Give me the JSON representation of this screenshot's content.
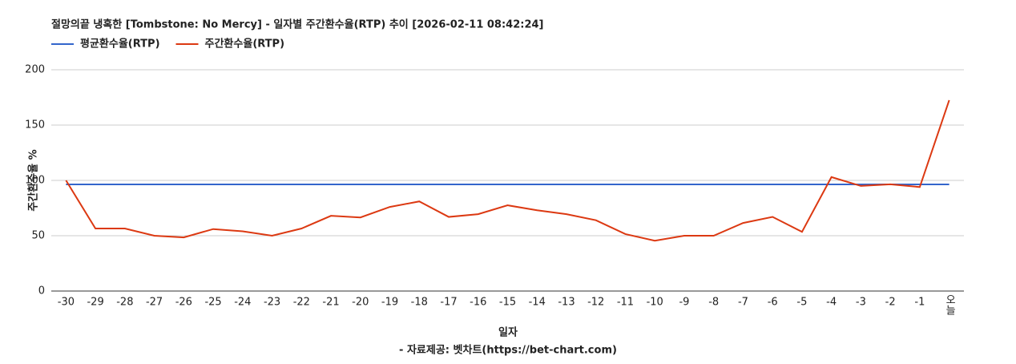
{
  "chart_data": {
    "type": "line",
    "title": "절망의끝 냉혹한 [Tombstone: No Mercy] - 일자별 주간환수율(RTP) 추이 [2026-02-11 08:42:24]",
    "x_label": "일자",
    "y_label": "주간환수율 %",
    "source": "- 자료제공: 벳차트(https://bet-chart.com)",
    "categories": [
      "-30",
      "-29",
      "-28",
      "-27",
      "-26",
      "-25",
      "-24",
      "-23",
      "-22",
      "-21",
      "-20",
      "-19",
      "-18",
      "-17",
      "-16",
      "-15",
      "-14",
      "-13",
      "-12",
      "-11",
      "-10",
      "-9",
      "-8",
      "-7",
      "-6",
      "-5",
      "-4",
      "-3",
      "-2",
      "-1",
      "오늘"
    ],
    "series": [
      {
        "name": "평균환수율(RTP)",
        "color": "#3366cc",
        "values": [
          96.4,
          96.4,
          96.4,
          96.4,
          96.4,
          96.4,
          96.4,
          96.4,
          96.4,
          96.4,
          96.4,
          96.4,
          96.4,
          96.4,
          96.4,
          96.4,
          96.4,
          96.4,
          96.4,
          96.4,
          96.4,
          96.4,
          96.4,
          96.4,
          96.4,
          96.4,
          96.4,
          96.4,
          96.4,
          96.4,
          96.4
        ]
      },
      {
        "name": "주간환수율(RTP)",
        "color": "#dc3912",
        "values": [
          100,
          56.5,
          56.5,
          50,
          48.5,
          56,
          54,
          50,
          56.5,
          68,
          66.5,
          76,
          81,
          67,
          69.5,
          77.5,
          73,
          69.5,
          64,
          51.5,
          45.5,
          50,
          50,
          61.5,
          67,
          53.5,
          103,
          95,
          96.5,
          94,
          172.5
        ]
      }
    ],
    "ylim": [
      0,
      200
    ],
    "yticks": [
      0,
      50,
      100,
      150,
      200
    ],
    "grid": true
  }
}
